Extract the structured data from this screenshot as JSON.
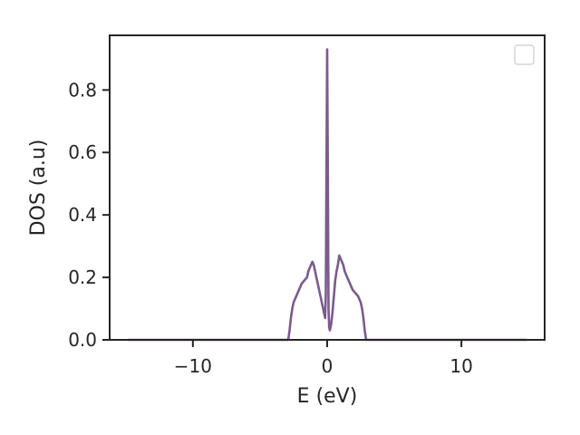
{
  "chart_data": {
    "type": "line",
    "title": "",
    "xlabel": "E (eV)",
    "ylabel": "DOS (a.u)",
    "xlim": [
      -16.2,
      16.2
    ],
    "ylim": [
      0,
      0.975
    ],
    "xticks": [
      -10,
      0,
      10
    ],
    "xtick_labels": [
      "−10",
      "0",
      "10"
    ],
    "yticks": [
      0.0,
      0.2,
      0.4,
      0.6,
      0.8
    ],
    "ytick_labels": [
      "0.0",
      "0.2",
      "0.4",
      "0.6",
      "0.8"
    ],
    "grid": false,
    "legend": {
      "location": "top-right",
      "entries": []
    },
    "series": [
      {
        "color": "#7b5b8c",
        "x": [
          -14.8,
          -3.0,
          -2.9,
          -2.8,
          -2.7,
          -2.6,
          -2.5,
          -2.4,
          -2.3,
          -2.1,
          -1.9,
          -1.7,
          -1.5,
          -1.4,
          -1.3,
          -1.2,
          -1.1,
          -1.0,
          -0.9,
          -0.8,
          -0.7,
          -0.6,
          -0.5,
          -0.4,
          -0.3,
          -0.2,
          -0.15,
          -0.1,
          -0.05,
          0.0,
          0.05,
          0.1,
          0.15,
          0.2,
          0.3,
          0.4,
          0.5,
          0.6,
          0.7,
          0.8,
          0.9,
          1.0,
          1.1,
          1.2,
          1.3,
          1.5,
          1.7,
          1.9,
          2.1,
          2.3,
          2.5,
          2.6,
          2.7,
          2.8,
          2.9,
          3.0,
          14.8
        ],
        "y": [
          0.0,
          0.0,
          0.0,
          0.03,
          0.07,
          0.1,
          0.12,
          0.13,
          0.14,
          0.16,
          0.18,
          0.19,
          0.2,
          0.22,
          0.23,
          0.24,
          0.25,
          0.24,
          0.22,
          0.2,
          0.18,
          0.16,
          0.14,
          0.12,
          0.1,
          0.08,
          0.07,
          0.15,
          0.55,
          0.93,
          0.55,
          0.1,
          0.04,
          0.03,
          0.05,
          0.09,
          0.14,
          0.19,
          0.22,
          0.24,
          0.27,
          0.26,
          0.25,
          0.24,
          0.22,
          0.2,
          0.18,
          0.16,
          0.15,
          0.14,
          0.12,
          0.1,
          0.07,
          0.03,
          0.0,
          0.0,
          0.0
        ]
      }
    ]
  }
}
